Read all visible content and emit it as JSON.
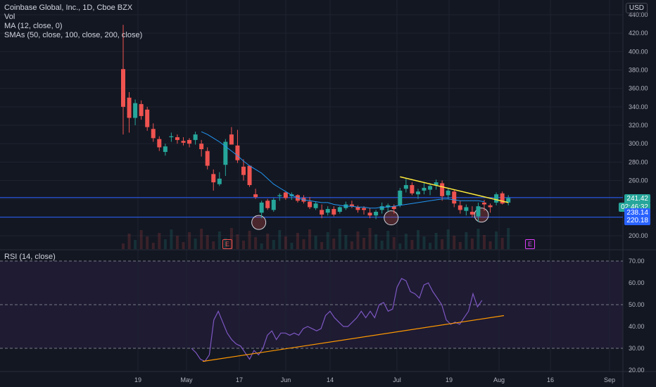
{
  "header": {
    "symbol": "Coinbase Global, Inc., 1D, Cboe BZX",
    "vol": "Vol",
    "ma": "MA (12, close, 0)",
    "smas": "SMAs (50, close, 100, close, 200, close)",
    "currency": "USD"
  },
  "rsi_label": "RSI (14, close)",
  "price_tags": {
    "last": "241.42",
    "countdown": "02:46:32",
    "level1": "238.14",
    "level2": "220.18"
  },
  "earnings_marker": "E",
  "colors": {
    "up": "#26a69a",
    "down": "#ef5350",
    "ma": "#2196f3",
    "trend": "#ffeb3b",
    "rsi": "#7e57c2",
    "support": "#ff9800",
    "level": "#2962ff"
  },
  "chart_data": [
    {
      "type": "candlestick",
      "xlabels": [
        "19",
        "May",
        "17",
        "Jun",
        "14",
        "Jul",
        "19",
        "Aug",
        "16",
        "Sep"
      ],
      "ylabels": [
        "200.00",
        "220.00",
        "240.00",
        "260.00",
        "280.00",
        "300.00",
        "320.00",
        "340.00",
        "360.00",
        "380.00",
        "400.00",
        "420.00",
        "440.00"
      ],
      "ylim": [
        190,
        445
      ],
      "candles": [
        {
          "o": 381,
          "h": 429,
          "l": 310,
          "c": 340
        },
        {
          "o": 350,
          "h": 356,
          "l": 312,
          "c": 328
        },
        {
          "o": 328,
          "h": 348,
          "l": 320,
          "c": 344
        },
        {
          "o": 343,
          "h": 347,
          "l": 326,
          "c": 330
        },
        {
          "o": 337,
          "h": 340,
          "l": 314,
          "c": 318
        },
        {
          "o": 316,
          "h": 322,
          "l": 302,
          "c": 306
        },
        {
          "o": 305,
          "h": 308,
          "l": 292,
          "c": 296
        },
        {
          "o": 291,
          "h": 300,
          "l": 287,
          "c": 297
        },
        {
          "o": 307,
          "h": 312,
          "l": 302,
          "c": 308
        },
        {
          "o": 307,
          "h": 310,
          "l": 300,
          "c": 304
        },
        {
          "o": 303,
          "h": 307,
          "l": 298,
          "c": 301
        },
        {
          "o": 304,
          "h": 306,
          "l": 296,
          "c": 300
        },
        {
          "o": 304,
          "h": 313,
          "l": 299,
          "c": 310
        },
        {
          "o": 300,
          "h": 304,
          "l": 286,
          "c": 294
        },
        {
          "o": 292,
          "h": 296,
          "l": 272,
          "c": 276
        },
        {
          "o": 267,
          "h": 272,
          "l": 249,
          "c": 258
        },
        {
          "o": 256,
          "h": 269,
          "l": 254,
          "c": 262
        },
        {
          "o": 277,
          "h": 305,
          "l": 265,
          "c": 302
        },
        {
          "o": 310,
          "h": 318,
          "l": 300,
          "c": 299
        },
        {
          "o": 298,
          "h": 315,
          "l": 279,
          "c": 282
        },
        {
          "o": 275,
          "h": 283,
          "l": 260,
          "c": 266
        },
        {
          "o": 276,
          "h": 274,
          "l": 253,
          "c": 255
        },
        {
          "o": 245,
          "h": 251,
          "l": 240,
          "c": 242
        },
        {
          "o": 225,
          "h": 238,
          "l": 219,
          "c": 236
        },
        {
          "o": 238,
          "h": 240,
          "l": 228,
          "c": 230
        },
        {
          "o": 228,
          "h": 241,
          "l": 226,
          "c": 239
        },
        {
          "o": 243,
          "h": 246,
          "l": 238,
          "c": 244
        },
        {
          "o": 247,
          "h": 248,
          "l": 239,
          "c": 241
        },
        {
          "o": 243,
          "h": 247,
          "l": 239,
          "c": 245
        },
        {
          "o": 244,
          "h": 245,
          "l": 236,
          "c": 238
        },
        {
          "o": 241,
          "h": 244,
          "l": 235,
          "c": 237
        },
        {
          "o": 237,
          "h": 242,
          "l": 229,
          "c": 231
        },
        {
          "o": 230,
          "h": 237,
          "l": 228,
          "c": 235
        },
        {
          "o": 228,
          "h": 234,
          "l": 219,
          "c": 223
        },
        {
          "o": 225,
          "h": 232,
          "l": 222,
          "c": 229
        },
        {
          "o": 229,
          "h": 232,
          "l": 221,
          "c": 223
        },
        {
          "o": 226,
          "h": 232,
          "l": 224,
          "c": 231
        },
        {
          "o": 230,
          "h": 237,
          "l": 228,
          "c": 234
        },
        {
          "o": 234,
          "h": 238,
          "l": 230,
          "c": 232
        },
        {
          "o": 231,
          "h": 233,
          "l": 225,
          "c": 228
        },
        {
          "o": 230,
          "h": 232,
          "l": 223,
          "c": 228
        },
        {
          "o": 225,
          "h": 230,
          "l": 219,
          "c": 222
        },
        {
          "o": 222,
          "h": 228,
          "l": 218,
          "c": 226
        },
        {
          "o": 228,
          "h": 236,
          "l": 224,
          "c": 232
        },
        {
          "o": 231,
          "h": 235,
          "l": 226,
          "c": 233
        },
        {
          "o": 232,
          "h": 234,
          "l": 224,
          "c": 229
        },
        {
          "o": 233,
          "h": 252,
          "l": 231,
          "c": 249
        },
        {
          "o": 251,
          "h": 262,
          "l": 247,
          "c": 255
        },
        {
          "o": 255,
          "h": 258,
          "l": 244,
          "c": 246
        },
        {
          "o": 245,
          "h": 251,
          "l": 240,
          "c": 248
        },
        {
          "o": 249,
          "h": 258,
          "l": 245,
          "c": 252
        },
        {
          "o": 250,
          "h": 257,
          "l": 244,
          "c": 254
        },
        {
          "o": 255,
          "h": 261,
          "l": 250,
          "c": 258
        },
        {
          "o": 257,
          "h": 260,
          "l": 238,
          "c": 243
        },
        {
          "o": 244,
          "h": 252,
          "l": 240,
          "c": 249
        },
        {
          "o": 248,
          "h": 250,
          "l": 231,
          "c": 235
        },
        {
          "o": 233,
          "h": 238,
          "l": 224,
          "c": 228
        },
        {
          "o": 227,
          "h": 234,
          "l": 222,
          "c": 231
        },
        {
          "o": 226,
          "h": 232,
          "l": 220,
          "c": 223
        },
        {
          "o": 221,
          "h": 236,
          "l": 215,
          "c": 232
        },
        {
          "o": 236,
          "h": 239,
          "l": 227,
          "c": 234
        },
        {
          "o": 233,
          "h": 235,
          "l": 225,
          "c": 231
        },
        {
          "o": 236,
          "h": 247,
          "l": 233,
          "c": 245
        },
        {
          "o": 246,
          "h": 248,
          "l": 234,
          "c": 235
        },
        {
          "o": 236,
          "h": 244,
          "l": 233,
          "c": 241
        }
      ],
      "ma_line": [
        313,
        310,
        306,
        302,
        297,
        292,
        287,
        281,
        276,
        272,
        268,
        262,
        256,
        252,
        248,
        244,
        241,
        239,
        238,
        237,
        236,
        236,
        234,
        233,
        232,
        232,
        231,
        231,
        230,
        230,
        231,
        231,
        232,
        233,
        234,
        235,
        236,
        237,
        238,
        239,
        240,
        240,
        239,
        238,
        238,
        238,
        238,
        237
      ],
      "ma_start_index": 13,
      "trend_line": [
        {
          "i": 46,
          "y": 264
        },
        {
          "i": 64,
          "y": 236
        }
      ],
      "price_levels": [
        241.42,
        220.18
      ],
      "circled_lows_index": [
        23,
        45,
        60
      ]
    },
    {
      "type": "line",
      "title": "RSI (14, close)",
      "ylabels": [
        "20.00",
        "30.00",
        "40.00",
        "50.00",
        "60.00",
        "70.00"
      ],
      "ylim": [
        18,
        72
      ],
      "bands": [
        30,
        50,
        70
      ],
      "values": [
        30,
        28,
        25,
        24,
        27,
        43,
        47,
        42,
        37,
        34,
        32,
        31,
        28,
        25,
        29,
        27,
        30,
        36,
        38,
        34,
        37,
        37,
        36,
        37,
        36,
        39,
        40,
        39,
        38,
        39,
        45,
        47,
        44,
        42,
        40,
        40,
        42,
        44,
        47,
        44,
        47,
        44,
        50,
        51,
        47,
        48,
        58,
        62,
        61,
        56,
        55,
        53,
        59,
        60,
        56,
        53,
        50,
        43,
        41,
        42,
        41,
        44,
        47,
        55,
        49,
        52
      ],
      "support_line": [
        {
          "i": 0,
          "y": 24
        },
        {
          "i": 66,
          "y": 45
        }
      ]
    }
  ]
}
